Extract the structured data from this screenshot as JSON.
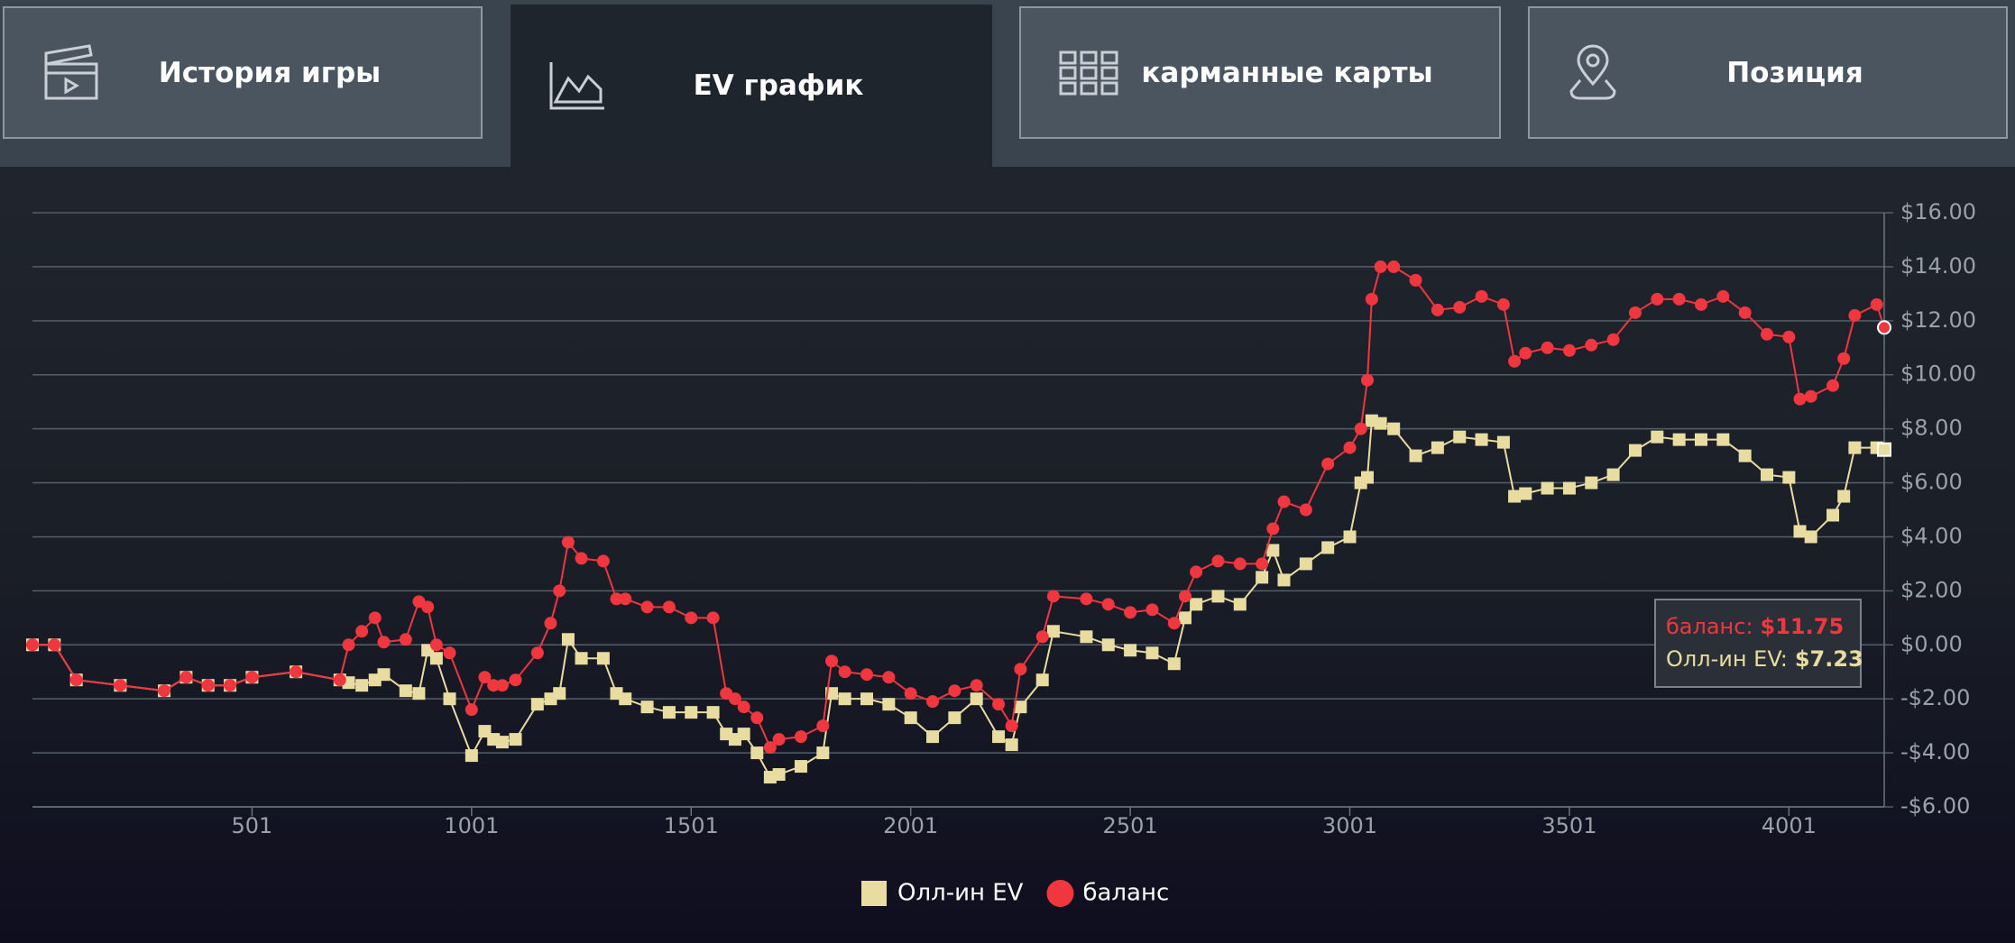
{
  "tabs": [
    {
      "label": "История игры"
    },
    {
      "label": "EV график"
    },
    {
      "label": "карманные карты"
    },
    {
      "label": "Позиция"
    }
  ],
  "chart_data": {
    "type": "line",
    "x": [
      1,
      51,
      101,
      201,
      301,
      351,
      401,
      451,
      501,
      601,
      701,
      721,
      751,
      781,
      801,
      851,
      881,
      901,
      921,
      951,
      1001,
      1031,
      1051,
      1071,
      1101,
      1151,
      1181,
      1201,
      1221,
      1251,
      1301,
      1331,
      1351,
      1401,
      1451,
      1501,
      1551,
      1581,
      1601,
      1621,
      1651,
      1681,
      1701,
      1751,
      1801,
      1821,
      1851,
      1901,
      1951,
      2001,
      2051,
      2101,
      2151,
      2201,
      2231,
      2251,
      2301,
      2326,
      2401,
      2451,
      2501,
      2551,
      2601,
      2626,
      2651,
      2701,
      2751,
      2801,
      2826,
      2851,
      2901,
      2951,
      3001,
      3026,
      3041,
      3051,
      3071,
      3101,
      3151,
      3201,
      3251,
      3301,
      3351,
      3376,
      3401,
      3451,
      3501,
      3551,
      3601,
      3651,
      3701,
      3751,
      3801,
      3851,
      3901,
      3951,
      4001,
      4026,
      4051,
      4101,
      4126,
      4151,
      4201,
      4218
    ],
    "series": [
      {
        "name": "Олл-ин EV",
        "color": "#e8dca0",
        "marker": "square",
        "values": [
          0,
          0,
          -1.3,
          -1.5,
          -1.7,
          -1.2,
          -1.5,
          -1.5,
          -1.2,
          -1.0,
          -1.3,
          -1.4,
          -1.5,
          -1.3,
          -1.1,
          -1.7,
          -1.8,
          -0.2,
          -0.5,
          -2.0,
          -4.1,
          -3.2,
          -3.5,
          -3.6,
          -3.5,
          -2.2,
          -2.0,
          -1.8,
          0.2,
          -0.5,
          -0.5,
          -1.8,
          -2.0,
          -2.3,
          -2.5,
          -2.5,
          -2.5,
          -3.3,
          -3.5,
          -3.3,
          -4.0,
          -4.9,
          -4.8,
          -4.5,
          -4.0,
          -1.8,
          -2.0,
          -2.0,
          -2.2,
          -2.7,
          -3.4,
          -2.7,
          -2.0,
          -3.4,
          -3.7,
          -2.3,
          -1.3,
          0.5,
          0.3,
          0.0,
          -0.2,
          -0.3,
          -0.7,
          1.0,
          1.5,
          1.8,
          1.5,
          2.5,
          3.5,
          2.4,
          3.0,
          3.6,
          4.0,
          6.0,
          6.2,
          8.3,
          8.2,
          8.0,
          7.0,
          7.3,
          7.7,
          7.6,
          7.5,
          5.5,
          5.6,
          5.8,
          5.8,
          6.0,
          6.3,
          7.2,
          7.7,
          7.6,
          7.6,
          7.6,
          7.0,
          6.3,
          6.2,
          4.2,
          4.0,
          4.8,
          5.5,
          7.3,
          7.3,
          7.23
        ]
      },
      {
        "name": "баланс",
        "color": "#f0363f",
        "marker": "circle",
        "values": [
          0,
          0,
          -1.3,
          -1.5,
          -1.7,
          -1.2,
          -1.5,
          -1.5,
          -1.2,
          -1.0,
          -1.3,
          0.0,
          0.5,
          1.0,
          0.1,
          0.2,
          1.6,
          1.4,
          0.0,
          -0.3,
          -2.4,
          -1.2,
          -1.5,
          -1.5,
          -1.3,
          -0.3,
          0.8,
          2.0,
          3.8,
          3.2,
          3.1,
          1.7,
          1.7,
          1.4,
          1.4,
          1.0,
          1.0,
          -1.8,
          -2.0,
          -2.3,
          -2.7,
          -3.8,
          -3.5,
          -3.4,
          -3.0,
          -0.6,
          -1.0,
          -1.1,
          -1.2,
          -1.8,
          -2.1,
          -1.7,
          -1.5,
          -2.2,
          -3.0,
          -0.9,
          0.3,
          1.8,
          1.7,
          1.5,
          1.2,
          1.3,
          0.8,
          1.8,
          2.7,
          3.1,
          3.0,
          3.0,
          4.3,
          5.3,
          5.0,
          6.7,
          7.3,
          8.0,
          9.8,
          12.8,
          14.0,
          14.0,
          13.5,
          12.4,
          12.5,
          12.9,
          12.6,
          10.5,
          10.8,
          11.0,
          10.9,
          11.1,
          11.3,
          12.3,
          12.8,
          12.8,
          12.6,
          12.9,
          12.3,
          11.5,
          11.4,
          9.1,
          9.2,
          9.6,
          10.6,
          12.2,
          12.6,
          11.75
        ]
      }
    ],
    "xlim": [
      1,
      4218
    ],
    "xticks": [
      501,
      1001,
      1501,
      2001,
      2501,
      3001,
      3501,
      4001
    ],
    "ylim": [
      -6,
      16
    ],
    "yticks": [
      {
        "value": -6,
        "label": "-$6.00"
      },
      {
        "value": -4,
        "label": "-$4.00"
      },
      {
        "value": -2,
        "label": "-$2.00"
      },
      {
        "value": 0,
        "label": "$0.00"
      },
      {
        "value": 2,
        "label": "$2.00"
      },
      {
        "value": 4,
        "label": "$4.00"
      },
      {
        "value": 6,
        "label": "$6.00"
      },
      {
        "value": 8,
        "label": "$8.00"
      },
      {
        "value": 10,
        "label": "$10.00"
      },
      {
        "value": 12,
        "label": "$12.00"
      },
      {
        "value": 14,
        "label": "$14.00"
      },
      {
        "value": 16,
        "label": "$16.00"
      }
    ],
    "grid": true,
    "tooltip": [
      {
        "label": "баланс:",
        "value": "$11.75"
      },
      {
        "label": "Олл-ин EV:",
        "value": "$7.23"
      }
    ]
  }
}
